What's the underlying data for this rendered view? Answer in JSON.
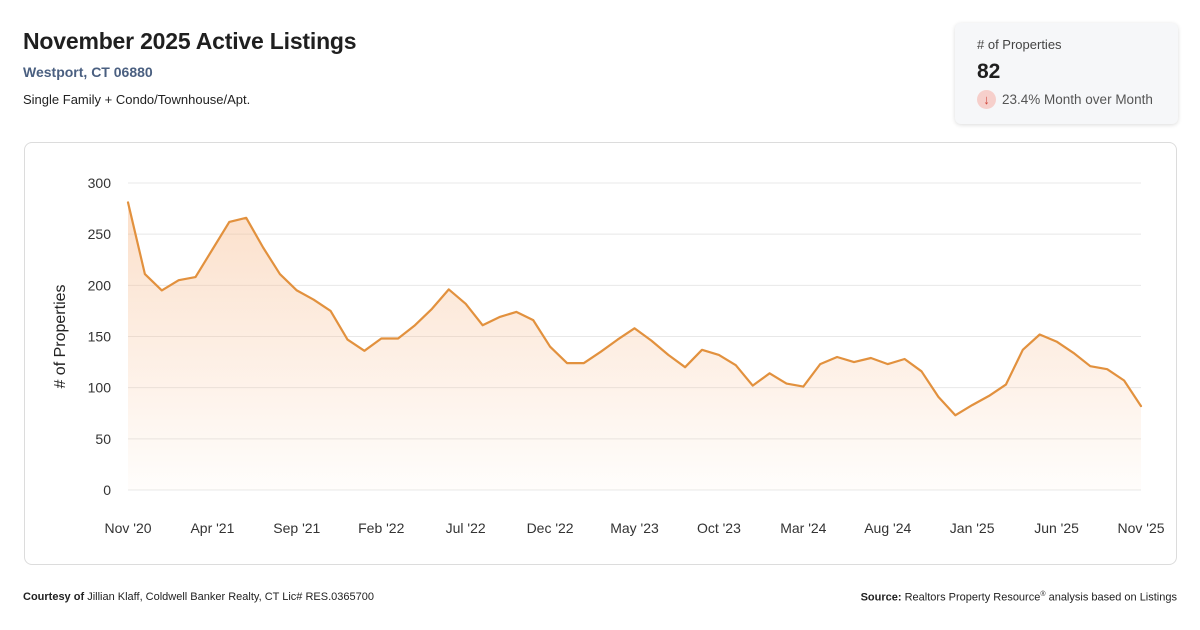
{
  "header": {
    "title": "November 2025 Active Listings",
    "location": "Westport, CT 06880",
    "property_types": "Single Family + Condo/Townhouse/Apt."
  },
  "kpi": {
    "label": "# of Properties",
    "value": "82",
    "change": "23.4% Month over Month",
    "direction_icon": "arrow-down-icon"
  },
  "footer": {
    "courtesy_label": "Courtesy of",
    "courtesy_text": "Jillian Klaff, Coldwell Banker Realty, CT Lic# RES.0365700",
    "source_label": "Source:",
    "source_brand": "Realtors Property Resource",
    "source_mark": "®",
    "source_text": "analysis based on Listings"
  },
  "chart_data": {
    "type": "area",
    "ylabel": "# of Properties",
    "ylim": [
      0,
      300
    ],
    "yticks": [
      0,
      50,
      100,
      150,
      200,
      250,
      300
    ],
    "xtick_labels": [
      "Nov '20",
      "Apr '21",
      "Sep '21",
      "Feb '22",
      "Jul '22",
      "Dec '22",
      "May '23",
      "Oct '23",
      "Mar '24",
      "Aug '24",
      "Jan '25",
      "Jun '25",
      "Nov '25"
    ],
    "x": [
      "2020-11",
      "2020-12",
      "2021-01",
      "2021-02",
      "2021-03",
      "2021-04",
      "2021-05",
      "2021-06",
      "2021-07",
      "2021-08",
      "2021-09",
      "2021-10",
      "2021-11",
      "2021-12",
      "2022-01",
      "2022-02",
      "2022-03",
      "2022-04",
      "2022-05",
      "2022-06",
      "2022-07",
      "2022-08",
      "2022-09",
      "2022-10",
      "2022-11",
      "2022-12",
      "2023-01",
      "2023-02",
      "2023-03",
      "2023-04",
      "2023-05",
      "2023-06",
      "2023-07",
      "2023-08",
      "2023-09",
      "2023-10",
      "2023-11",
      "2023-12",
      "2024-01",
      "2024-02",
      "2024-03",
      "2024-04",
      "2024-05",
      "2024-06",
      "2024-07",
      "2024-08",
      "2024-09",
      "2024-10",
      "2024-11",
      "2024-12",
      "2025-01",
      "2025-02",
      "2025-03",
      "2025-04",
      "2025-05",
      "2025-06",
      "2025-07",
      "2025-08",
      "2025-09",
      "2025-10",
      "2025-11"
    ],
    "values": [
      281,
      211,
      195,
      205,
      208,
      235,
      262,
      266,
      237,
      211,
      195,
      186,
      175,
      147,
      136,
      148,
      148,
      161,
      177,
      196,
      182,
      161,
      169,
      174,
      166,
      140,
      124,
      124,
      135,
      147,
      158,
      146,
      132,
      120,
      137,
      132,
      122,
      102,
      114,
      104,
      101,
      123,
      130,
      125,
      129,
      123,
      128,
      116,
      91,
      73,
      83,
      92,
      103,
      137,
      152,
      145,
      134,
      121,
      118,
      107,
      82
    ],
    "grid": true,
    "legend": "none",
    "line_color": "#e2913e",
    "fill_color": "#f7b98a"
  }
}
